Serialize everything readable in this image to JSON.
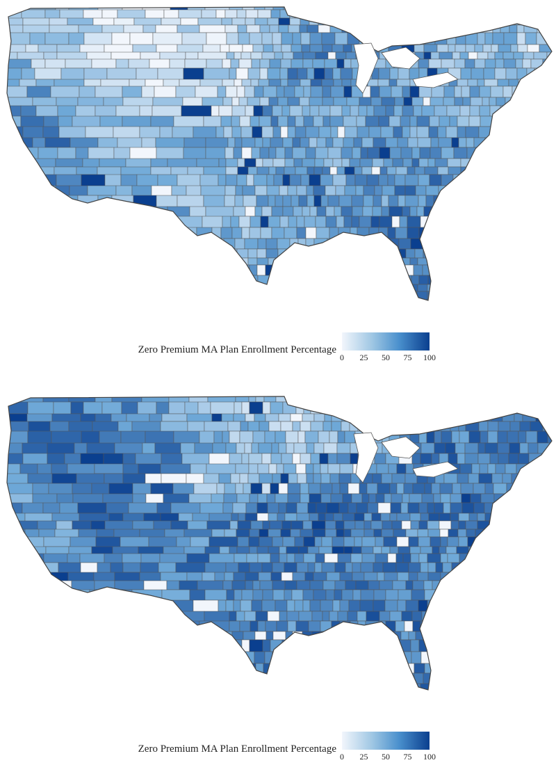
{
  "maps": [
    {
      "id": "map-top",
      "legend": {
        "title": "Zero Premium MA Plan Enrollment Percentage",
        "ticks": [
          "0",
          "25",
          "50",
          "75",
          "100"
        ],
        "range": [
          0,
          100
        ]
      },
      "colors": {
        "low": "#f2f6fc",
        "mid": "#6fa9d8",
        "high": "#0a3f8f",
        "border": "#555555"
      },
      "region_levels": {
        "pacific_northwest": 0.35,
        "northern_rockies": 0.05,
        "great_basin": 0.3,
        "california": 0.65,
        "southwest": 0.45,
        "northern_plains": 0.15,
        "southern_plains": 0.4,
        "upper_midwest": 0.6,
        "midwest": 0.5,
        "south": 0.55,
        "southeast": 0.6,
        "florida": 0.8,
        "northeast": 0.45,
        "new_england": 0.35
      }
    },
    {
      "id": "map-bottom",
      "legend": {
        "title": "Zero Premium MA Plan Enrollment Percentage",
        "ticks": [
          "0",
          "25",
          "50",
          "75",
          "100"
        ],
        "range": [
          0,
          100
        ]
      },
      "colors": {
        "low": "#f2f6fc",
        "mid": "#6fa9d8",
        "high": "#0a3f8f",
        "border": "#555555"
      },
      "region_levels": {
        "pacific_northwest": 0.7,
        "northern_rockies": 0.65,
        "great_basin": 0.85,
        "california": 0.55,
        "southwest": 0.7,
        "northern_plains": 0.35,
        "southern_plains": 0.65,
        "upper_midwest": 0.3,
        "midwest": 0.8,
        "south": 0.7,
        "southeast": 0.65,
        "florida": 0.7,
        "northeast": 0.7,
        "new_england": 0.75
      }
    }
  ]
}
